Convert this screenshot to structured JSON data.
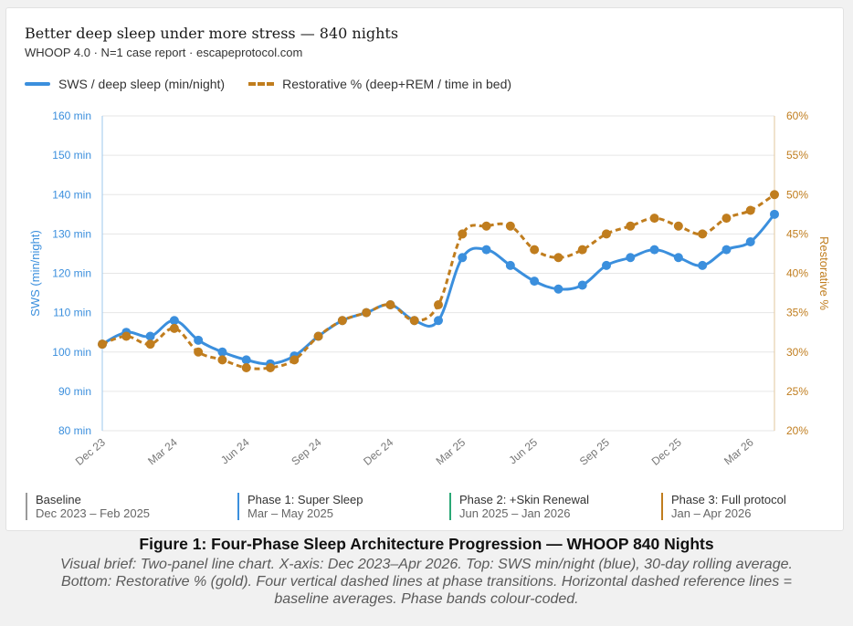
{
  "header": {
    "title": "Better deep sleep under more stress — 840 nights",
    "subtitle": "WHOOP 4.0 · N=1 case report · escapeprotocol.com"
  },
  "colors": {
    "sws": "#3b8fdd",
    "restorative": "#c07d1e",
    "grid": "#e6e6e6"
  },
  "chart_data": {
    "type": "line",
    "x": [
      "Dec 23",
      "Jan 24",
      "Feb 24",
      "Mar 24",
      "Apr 24",
      "May 24",
      "Jun 24",
      "Jul 24",
      "Aug 24",
      "Sep 24",
      "Oct 24",
      "Nov 24",
      "Dec 24",
      "Jan 25",
      "Feb 25",
      "Mar 25",
      "Apr 25",
      "May 25",
      "Jun 25",
      "Jul 25",
      "Aug 25",
      "Sep 25",
      "Oct 25",
      "Nov 25",
      "Dec 25",
      "Jan 26",
      "Feb 26",
      "Mar 26",
      "Apr 26"
    ],
    "xticks": [
      "Dec 23",
      "Mar 24",
      "Jun 24",
      "Sep 24",
      "Dec 24",
      "Mar 25",
      "Jun 25",
      "Sep 25",
      "Dec 25",
      "Mar 26"
    ],
    "series": [
      {
        "name": "SWS / deep sleep (min/night)",
        "axis": "left",
        "style": "solid",
        "values": [
          102,
          105,
          104,
          108,
          103,
          100,
          98,
          97,
          99,
          104,
          108,
          110,
          112,
          108,
          108,
          124,
          126,
          122,
          118,
          116,
          117,
          122,
          124,
          126,
          124,
          122,
          126,
          128,
          135
        ]
      },
      {
        "name": "Restorative % (deep+REM / time in bed)",
        "axis": "right",
        "style": "dashed",
        "values": [
          31,
          32,
          31,
          33,
          30,
          29,
          28,
          28,
          29,
          32,
          34,
          35,
          36,
          34,
          36,
          45,
          46,
          46,
          43,
          42,
          43,
          45,
          46,
          47,
          46,
          45,
          47,
          48,
          50
        ]
      }
    ],
    "y_left": {
      "label": "SWS (min/night)",
      "ylim": [
        80,
        160
      ],
      "ticks": [
        "80 min",
        "90 min",
        "100 min",
        "110 min",
        "120 min",
        "130 min",
        "140 min",
        "150 min",
        "160 min"
      ]
    },
    "y_right": {
      "label": "Restorative %",
      "ylim": [
        20,
        60
      ],
      "ticks": [
        "20%",
        "25%",
        "30%",
        "35%",
        "40%",
        "45%",
        "50%",
        "55%",
        "60%"
      ]
    },
    "grid": "horizontal",
    "legend": "top-left"
  },
  "phases": [
    {
      "name": "Baseline",
      "dates": "Dec 2023 – Feb 2025",
      "color": "#9a9a9a"
    },
    {
      "name": "Phase 1: Super Sleep",
      "dates": "Mar – May 2025",
      "color": "#3b8fdd"
    },
    {
      "name": "Phase 2: +Skin Renewal",
      "dates": "Jun 2025 – Jan 2026",
      "color": "#2aa876"
    },
    {
      "name": "Phase 3: Full protocol",
      "dates": "Jan – Apr 2026",
      "color": "#c07d1e"
    }
  ],
  "caption": {
    "figure": "Figure 1: Four-Phase Sleep Architecture Progression — WHOOP 840 Nights",
    "brief": "Visual brief: Two-panel line chart. X-axis: Dec 2023–Apr 2026. Top: SWS min/night (blue), 30-day rolling average. Bottom: Restorative % (gold). Four vertical dashed lines at phase transitions. Horizontal dashed reference lines = baseline averages. Phase bands colour-coded."
  }
}
